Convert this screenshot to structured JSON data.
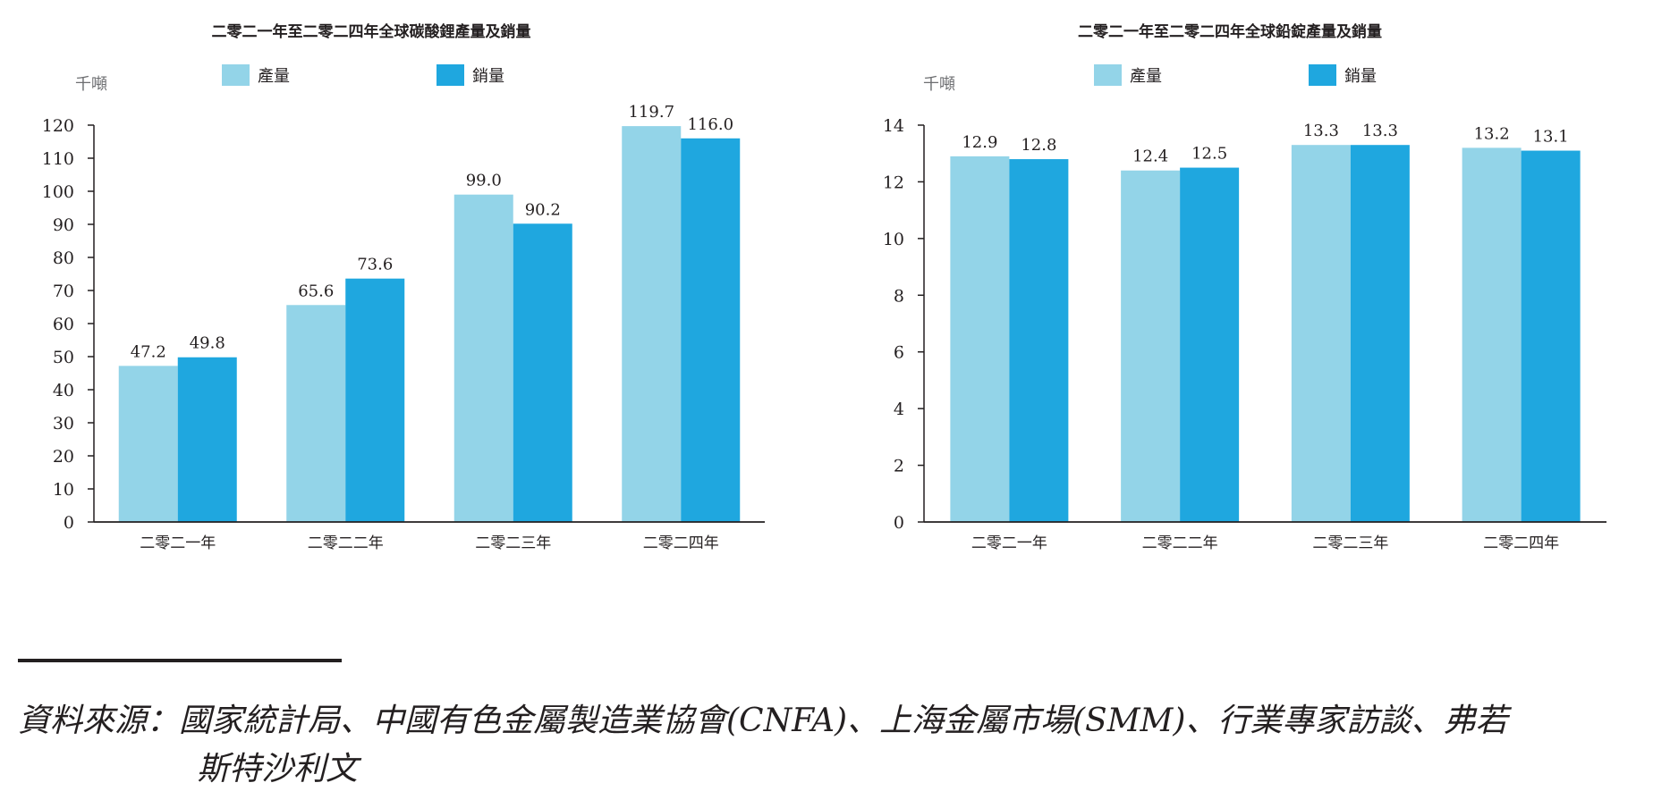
{
  "chart_data": [
    {
      "type": "bar",
      "title": "二零二一年至二零二四年全球碳酸鋰產量及銷量",
      "unit": "千噸",
      "categories": [
        "二零二一年",
        "二零二二年",
        "二零二三年",
        "二零二四年"
      ],
      "series": [
        {
          "name": "產量",
          "color": "#93d4e8",
          "values": [
            47.2,
            65.6,
            99.0,
            119.7
          ],
          "labels": [
            "47.2",
            "65.6",
            "99.0",
            "119.7"
          ]
        },
        {
          "name": "銷量",
          "color": "#1fa7df",
          "values": [
            49.8,
            73.6,
            90.2,
            116.0
          ],
          "labels": [
            "49.8",
            "73.6",
            "90.2",
            "116.0"
          ]
        }
      ],
      "ylim": [
        0,
        120
      ],
      "yticks": [
        0,
        10,
        20,
        30,
        40,
        50,
        60,
        70,
        80,
        90,
        100,
        110,
        120
      ],
      "legend_position": "top"
    },
    {
      "type": "bar",
      "title": "二零二一年至二零二四年全球鉛錠產量及銷量",
      "unit": "千噸",
      "categories": [
        "二零二一年",
        "二零二二年",
        "二零二三年",
        "二零二四年"
      ],
      "series": [
        {
          "name": "產量",
          "color": "#93d4e8",
          "values": [
            12.9,
            12.4,
            13.3,
            13.2
          ],
          "labels": [
            "12.9",
            "12.4",
            "13.3",
            "13.2"
          ]
        },
        {
          "name": "銷量",
          "color": "#1fa7df",
          "values": [
            12.8,
            12.5,
            13.3,
            13.1
          ],
          "labels": [
            "12.8",
            "12.5",
            "13.3",
            "13.1"
          ]
        }
      ],
      "ylim": [
        0,
        14
      ],
      "yticks": [
        0,
        2,
        4,
        6,
        8,
        10,
        12,
        14
      ],
      "legend_position": "top"
    }
  ],
  "source": {
    "line1": "資料來源：國家統計局、中國有色金屬製造業協會(CNFA)、上海金屬市場(SMM)、行業專家訪談、弗若",
    "line2": "斯特沙利文"
  }
}
